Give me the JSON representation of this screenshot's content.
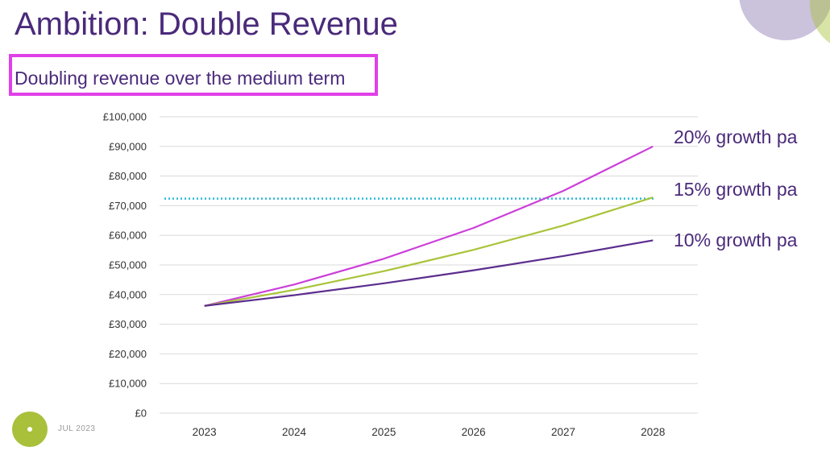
{
  "slide": {
    "title": "Ambition: Double Revenue",
    "subtitle": "Doubling revenue over the medium term",
    "footer_date": "JUL 2023"
  },
  "colors": {
    "title": "#4a2a7a",
    "highlight_box": "#e040e8",
    "target_line": "#29b6d8",
    "deco_purple": "#b9aed0",
    "deco_green": "#a8c03a"
  },
  "chart_data": {
    "type": "line",
    "categories": [
      "2023",
      "2024",
      "2025",
      "2026",
      "2027",
      "2028"
    ],
    "ylim": [
      0,
      100000
    ],
    "yticks": [
      {
        "value": 0,
        "label": "£0"
      },
      {
        "value": 10000,
        "label": "£10,000"
      },
      {
        "value": 20000,
        "label": "£20,000"
      },
      {
        "value": 30000,
        "label": "£30,000"
      },
      {
        "value": 40000,
        "label": "£40,000"
      },
      {
        "value": 50000,
        "label": "£50,000"
      },
      {
        "value": 60000,
        "label": "£60,000"
      },
      {
        "value": 70000,
        "label": "£70,000"
      },
      {
        "value": 80000,
        "label": "£80,000"
      },
      {
        "value": 90000,
        "label": "£90,000"
      },
      {
        "value": 100000,
        "label": "£100,000"
      }
    ],
    "grid": true,
    "series": [
      {
        "name": "20% growth pa",
        "color": "#cc3fd9",
        "values": [
          36200,
          43400,
          52100,
          62500,
          75000,
          90000
        ]
      },
      {
        "name": "15% growth pa",
        "color": "#a9c43a",
        "values": [
          36200,
          41600,
          47900,
          55100,
          63300,
          72800
        ]
      },
      {
        "name": "10% growth pa",
        "color": "#5b2d8e",
        "values": [
          36200,
          39800,
          43800,
          48200,
          53000,
          58300
        ]
      }
    ],
    "reference_line": {
      "value": 72400,
      "style": "dotted",
      "color": "#29b6d8"
    }
  }
}
